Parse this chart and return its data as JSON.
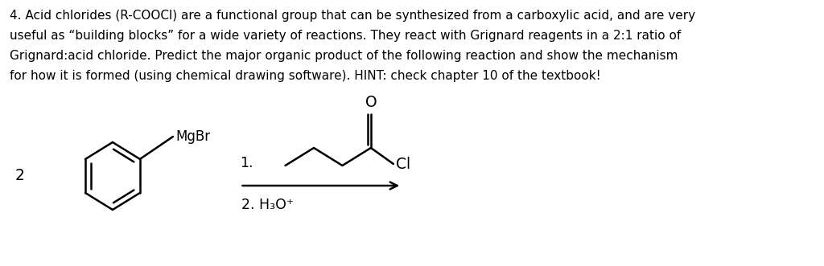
{
  "background_color": "#ffffff",
  "text_color": "#000000",
  "lines": [
    "4. Acid chlorides (R-COOCl) are a functional group that can be synthesized from a carboxylic acid, and are very",
    "useful as “building blocks” for a wide variety of reactions. They react with Grignard reagents in a 2:1 ratio of",
    "Grignard:acid chloride. Predict the major organic product of the following reaction and show the mechanism",
    "for how it is formed (using chemical drawing software). HINT: check chapter 10 of the textbook!"
  ],
  "label_2": "2",
  "label_mgbr": "MgBr",
  "label_1": "1.",
  "label_2b": "2. H₃O⁺",
  "label_cl": "Cl",
  "label_o": "O",
  "fig_width": 10.24,
  "fig_height": 3.31,
  "dpi": 100,
  "font_size_text": 11.0,
  "font_size_labels": 11.5
}
